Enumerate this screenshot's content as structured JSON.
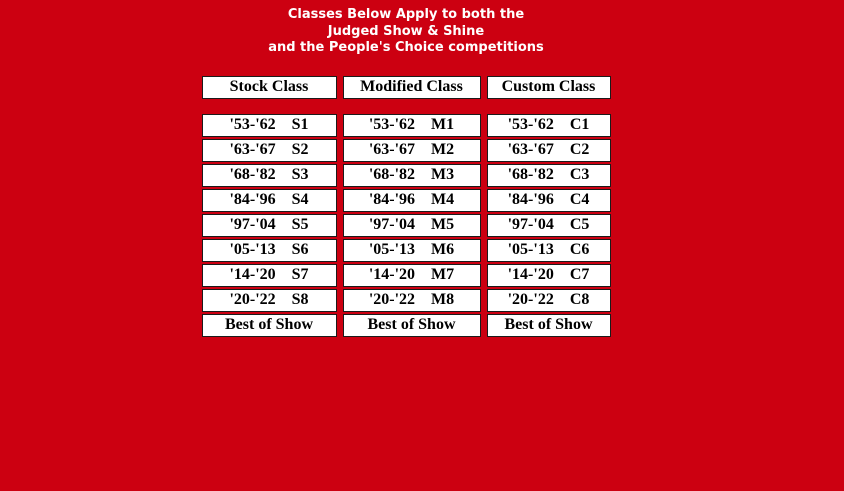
{
  "page": {
    "background_color": "#CC0011",
    "cell_background": "#FFFFFF",
    "cell_border_color": "#1b1b1b",
    "title_color": "#FFFFFF",
    "title": {
      "line1": "Classes Below Apply to both the",
      "line2": "Judged Show & Shine",
      "line3": "and the People's Choice competitions"
    }
  },
  "table": {
    "columns": [
      {
        "header": "Stock Class",
        "rows": [
          {
            "years": "'53-'62",
            "code": "S1"
          },
          {
            "years": "'63-'67",
            "code": "S2"
          },
          {
            "years": "'68-'82",
            "code": "S3"
          },
          {
            "years": "'84-'96",
            "code": "S4"
          },
          {
            "years": "'97-'04",
            "code": "S5"
          },
          {
            "years": "'05-'13",
            "code": "S6"
          },
          {
            "years": "'14-'20",
            "code": "S7"
          },
          {
            "years": "'20-'22",
            "code": "S8"
          }
        ],
        "footer": "Best of Show"
      },
      {
        "header": "Modified Class",
        "rows": [
          {
            "years": "'53-'62",
            "code": "M1"
          },
          {
            "years": "'63-'67",
            "code": "M2"
          },
          {
            "years": "'68-'82",
            "code": "M3"
          },
          {
            "years": "'84-'96",
            "code": "M4"
          },
          {
            "years": "'97-'04",
            "code": "M5"
          },
          {
            "years": "'05-'13",
            "code": "M6"
          },
          {
            "years": "'14-'20",
            "code": "M7"
          },
          {
            "years": "'20-'22",
            "code": "M8"
          }
        ],
        "footer": "Best of Show"
      },
      {
        "header": "Custom Class",
        "rows": [
          {
            "years": "'53-'62",
            "code": "C1"
          },
          {
            "years": "'63-'67",
            "code": "C2"
          },
          {
            "years": "'68-'82",
            "code": "C3"
          },
          {
            "years": "'84-'96",
            "code": "C4"
          },
          {
            "years": "'97-'04",
            "code": "C5"
          },
          {
            "years": "'05-'13",
            "code": "C6"
          },
          {
            "years": "'14-'20",
            "code": "C7"
          },
          {
            "years": "'20-'22",
            "code": "C8"
          }
        ],
        "footer": "Best of Show"
      }
    ]
  }
}
